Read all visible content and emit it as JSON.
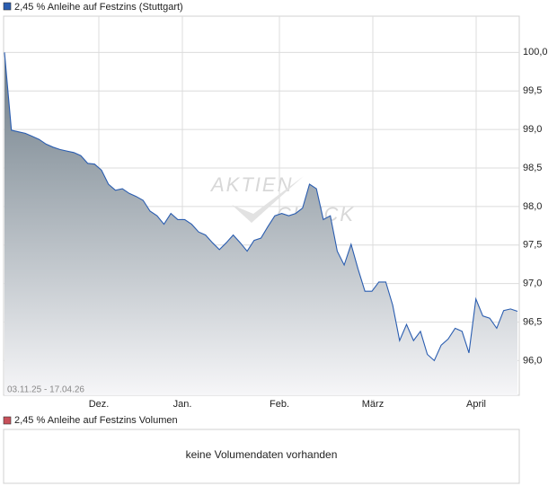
{
  "chart_data": {
    "type": "area",
    "title": "2,45 % Anleihe auf Festzins (Stuttgart)",
    "range_label": "03.11.25 - 17.04.26",
    "watermark": [
      "AKTIEN",
      "CHECK"
    ],
    "series": [
      {
        "name": "2,45 % Anleihe auf Festzins (Stuttgart)",
        "color": "#2a5db0",
        "values": [
          100.0,
          98.99,
          98.97,
          98.95,
          98.91,
          98.87,
          98.81,
          98.77,
          98.74,
          98.72,
          98.7,
          98.66,
          98.56,
          98.55,
          98.47,
          98.29,
          98.21,
          98.23,
          98.17,
          98.13,
          98.08,
          97.94,
          97.88,
          97.77,
          97.91,
          97.83,
          97.83,
          97.77,
          97.67,
          97.63,
          97.53,
          97.44,
          97.53,
          97.63,
          97.53,
          97.42,
          97.56,
          97.59,
          97.74,
          97.88,
          97.91,
          97.88,
          97.91,
          97.98,
          98.29,
          98.23,
          97.83,
          97.88,
          97.42,
          97.24,
          97.51,
          97.19,
          96.9,
          96.9,
          97.02,
          97.02,
          96.72,
          96.26,
          96.47,
          96.26,
          96.38,
          96.08,
          96.0,
          96.2,
          96.28,
          96.42,
          96.38,
          96.1,
          96.8,
          96.58,
          96.55,
          96.42,
          96.65,
          96.67,
          96.64
        ]
      }
    ],
    "x_labels": [
      "Dez.",
      "Jan.",
      "Feb.",
      "März",
      "April"
    ],
    "ylim": [
      95.55,
      100.47
    ],
    "yticks": [
      {
        "value": 100.0,
        "label": "100,0"
      },
      {
        "value": 99.5,
        "label": "99,5"
      },
      {
        "value": 99.0,
        "label": "99,0"
      },
      {
        "value": 98.5,
        "label": "98,5"
      },
      {
        "value": 98.0,
        "label": "98,0"
      },
      {
        "value": 97.5,
        "label": "97,5"
      },
      {
        "value": 97.0,
        "label": "97,0"
      },
      {
        "value": 96.5,
        "label": "96,5"
      },
      {
        "value": 96.0,
        "label": "96,0"
      }
    ],
    "grid": true,
    "volume": {
      "title": "2,45 % Anleihe auf Festzins Volumen",
      "color": "#c8505a",
      "message": "keine Volumendaten vorhanden"
    }
  }
}
